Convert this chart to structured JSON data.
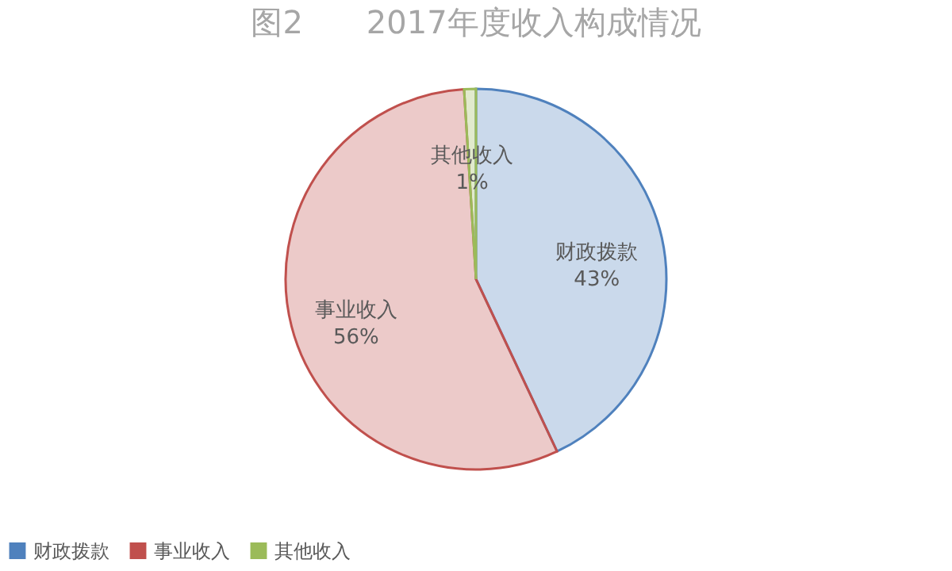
{
  "chart_data": {
    "type": "pie",
    "title": "图2　　2017年度收入构成情况",
    "categories": [
      "财政拨款",
      "事业收入",
      "其他收入"
    ],
    "values": [
      43,
      56,
      1
    ],
    "value_labels": [
      "43%",
      "56%",
      "1%"
    ],
    "colors": [
      "#4f81bd",
      "#c0504d",
      "#9bbb59"
    ],
    "legend": "bottom"
  }
}
